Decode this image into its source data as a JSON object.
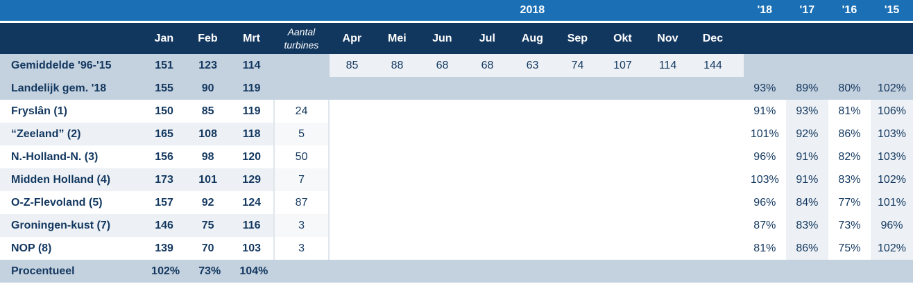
{
  "year_label": "2018",
  "year_headers": [
    "'18",
    "'17",
    "'16",
    "'15"
  ],
  "headers": {
    "q": [
      "Jan",
      "Feb",
      "Mrt"
    ],
    "turbines_line1": "Aantal",
    "turbines_line2": "turbines",
    "months": [
      "Apr",
      "Mei",
      "Jun",
      "Jul",
      "Aug",
      "Sep",
      "Okt",
      "Nov",
      "Dec"
    ]
  },
  "gemiddelde": {
    "name": "Gemiddelde '96-'15",
    "q": [
      "151",
      "123",
      "114"
    ],
    "months": [
      "85",
      "88",
      "68",
      "68",
      "63",
      "74",
      "107",
      "114",
      "144"
    ]
  },
  "landelijk": {
    "name": "Landelijk gem. '18",
    "q": [
      "155",
      "90",
      "119"
    ],
    "pct": [
      "93%",
      "89%",
      "80%",
      "102%"
    ]
  },
  "regions": [
    {
      "name": "Fryslân (1)",
      "q": [
        "150",
        "85",
        "119"
      ],
      "turbines": "24",
      "pct": [
        "91%",
        "93%",
        "81%",
        "106%"
      ]
    },
    {
      "name": "“Zeeland” (2)",
      "q": [
        "165",
        "108",
        "118"
      ],
      "turbines": "5",
      "pct": [
        "101%",
        "92%",
        "86%",
        "103%"
      ]
    },
    {
      "name": "N.-Holland-N. (3)",
      "q": [
        "156",
        "98",
        "120"
      ],
      "turbines": "50",
      "pct": [
        "96%",
        "91%",
        "82%",
        "103%"
      ]
    },
    {
      "name": "Midden Holland (4)",
      "q": [
        "173",
        "101",
        "129"
      ],
      "turbines": "7",
      "pct": [
        "103%",
        "91%",
        "83%",
        "102%"
      ]
    },
    {
      "name": "O-Z-Flevoland (5)",
      "q": [
        "157",
        "92",
        "124"
      ],
      "turbines": "87",
      "pct": [
        "96%",
        "84%",
        "77%",
        "101%"
      ]
    },
    {
      "name": "Groningen-kust (7)",
      "q": [
        "146",
        "75",
        "116"
      ],
      "turbines": "3",
      "pct": [
        "87%",
        "83%",
        "73%",
        "96%"
      ]
    },
    {
      "name": "NOP (8)",
      "q": [
        "139",
        "70",
        "103"
      ],
      "turbines": "3",
      "pct": [
        "81%",
        "86%",
        "75%",
        "102%"
      ]
    }
  ],
  "procentueel": {
    "name": "Procentueel",
    "q": [
      "102%",
      "73%",
      "104%"
    ]
  }
}
